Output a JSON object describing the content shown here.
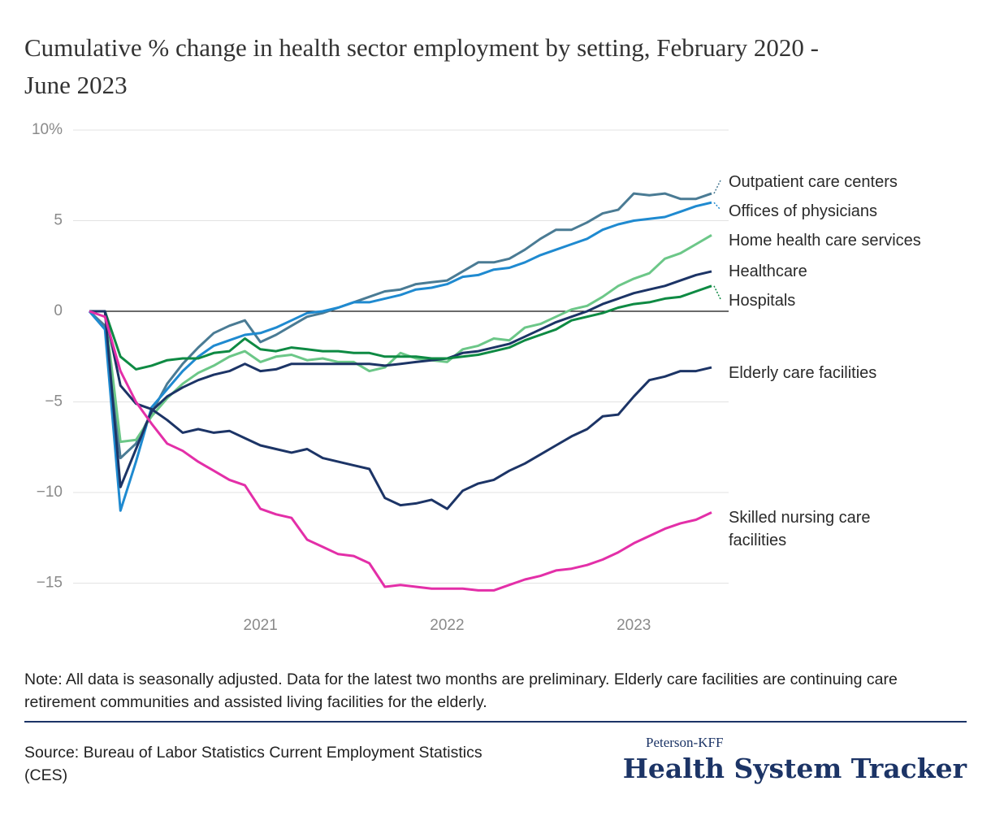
{
  "chart_data": {
    "type": "line",
    "title": "Cumulative % change in health sector employment by setting, February 2020 - June 2023",
    "categories": [
      null,
      null,
      null,
      null,
      null,
      null,
      null,
      null,
      null,
      null,
      null,
      "2021",
      null,
      null,
      null,
      null,
      null,
      null,
      null,
      null,
      null,
      null,
      null,
      "2022",
      null,
      null,
      null,
      null,
      null,
      null,
      null,
      null,
      null,
      null,
      null,
      "2023",
      null,
      null,
      null,
      null,
      null
    ],
    "ylim": [
      -16,
      10
    ],
    "yticks": [
      {
        "value": 10,
        "label": "10%"
      },
      5,
      0,
      {
        "value": -5,
        "label": "−5"
      },
      {
        "value": -10,
        "label": "−10"
      },
      {
        "value": -15,
        "label": "−15"
      }
    ],
    "grid": true,
    "series": [
      {
        "name": "Outpatient care centers",
        "color": "#4a7b94",
        "values": [
          0,
          -0.8,
          -8.1,
          -7.3,
          -5.6,
          -4.0,
          -2.9,
          -2.0,
          -1.2,
          -0.8,
          -0.5,
          -1.7,
          -1.3,
          -0.8,
          -0.3,
          -0.1,
          0.2,
          0.5,
          0.8,
          1.1,
          1.2,
          1.5,
          1.6,
          1.7,
          2.2,
          2.7,
          2.7,
          2.9,
          3.4,
          4.0,
          4.5,
          4.5,
          4.9,
          5.4,
          5.6,
          6.5,
          6.4,
          6.5,
          6.2,
          6.2,
          6.5
        ]
      },
      {
        "name": "Offices of physicians",
        "color": "#1f8ad0",
        "values": [
          0,
          -1.0,
          -11.0,
          -8.3,
          -5.3,
          -4.3,
          -3.3,
          -2.5,
          -1.9,
          -1.6,
          -1.3,
          -1.2,
          -0.9,
          -0.5,
          -0.1,
          0.0,
          0.2,
          0.5,
          0.5,
          0.7,
          0.9,
          1.2,
          1.3,
          1.5,
          1.9,
          2.0,
          2.3,
          2.4,
          2.7,
          3.1,
          3.4,
          3.7,
          4.0,
          4.5,
          4.8,
          5.0,
          5.1,
          5.2,
          5.5,
          5.8,
          6.0
        ]
      },
      {
        "name": "Home health care services",
        "color": "#6cc788",
        "values": [
          0,
          0,
          -7.2,
          -7.1,
          -5.8,
          -4.8,
          -4.0,
          -3.4,
          -3.0,
          -2.5,
          -2.2,
          -2.8,
          -2.5,
          -2.4,
          -2.7,
          -2.6,
          -2.8,
          -2.8,
          -3.3,
          -3.1,
          -2.3,
          -2.6,
          -2.7,
          -2.8,
          -2.1,
          -1.9,
          -1.5,
          -1.6,
          -0.9,
          -0.7,
          -0.3,
          0.1,
          0.3,
          0.8,
          1.4,
          1.8,
          2.1,
          2.9,
          3.2,
          3.7,
          4.2
        ]
      },
      {
        "name": "Healthcare",
        "color": "#1c3466",
        "values": [
          0,
          0,
          -9.7,
          -7.6,
          -5.5,
          -4.7,
          -4.2,
          -3.8,
          -3.5,
          -3.3,
          -2.9,
          -3.3,
          -3.2,
          -2.9,
          -2.9,
          -2.9,
          -2.9,
          -2.9,
          -2.9,
          -3.0,
          -2.9,
          -2.8,
          -2.7,
          -2.6,
          -2.3,
          -2.2,
          -2.0,
          -1.8,
          -1.4,
          -1.0,
          -0.6,
          -0.3,
          0.0,
          0.4,
          0.7,
          1.0,
          1.2,
          1.4,
          1.7,
          2.0,
          2.2
        ]
      },
      {
        "name": "Hospitals",
        "color": "#0e8a43",
        "values": [
          0,
          0,
          -2.5,
          -3.2,
          -3.0,
          -2.7,
          -2.6,
          -2.6,
          -2.3,
          -2.2,
          -1.5,
          -2.1,
          -2.2,
          -2.0,
          -2.1,
          -2.2,
          -2.2,
          -2.3,
          -2.3,
          -2.5,
          -2.5,
          -2.5,
          -2.6,
          -2.6,
          -2.5,
          -2.4,
          -2.2,
          -2.0,
          -1.6,
          -1.3,
          -1.0,
          -0.5,
          -0.3,
          -0.1,
          0.2,
          0.4,
          0.5,
          0.7,
          0.8,
          1.1,
          1.4
        ]
      },
      {
        "name": "Elderly care facilities",
        "color": "#1c3466",
        "values": [
          0,
          0,
          -4.1,
          -5.1,
          -5.4,
          -6.0,
          -6.7,
          -6.5,
          -6.7,
          -6.6,
          -7.0,
          -7.4,
          -7.6,
          -7.8,
          -7.6,
          -8.1,
          -8.3,
          -8.5,
          -8.7,
          -10.3,
          -10.7,
          -10.6,
          -10.4,
          -10.9,
          -9.9,
          -9.5,
          -9.3,
          -8.8,
          -8.4,
          -7.9,
          -7.4,
          -6.9,
          -6.5,
          -5.8,
          -5.7,
          -4.7,
          -3.8,
          -3.6,
          -3.3,
          -3.3,
          -3.1
        ]
      },
      {
        "name": "Skilled nursing care facilities",
        "color": "#e32fa8",
        "values": [
          0,
          -0.3,
          -3.3,
          -5.0,
          -6.2,
          -7.3,
          -7.7,
          -8.3,
          -8.8,
          -9.3,
          -9.6,
          -10.9,
          -11.2,
          -11.4,
          -12.6,
          -13.0,
          -13.4,
          -13.5,
          -13.9,
          -15.2,
          -15.1,
          -15.2,
          -15.3,
          -15.3,
          -15.3,
          -15.4,
          -15.4,
          -15.1,
          -14.8,
          -14.6,
          -14.3,
          -14.2,
          -14.0,
          -13.7,
          -13.3,
          -12.8,
          -12.4,
          -12.0,
          -11.7,
          -11.5,
          -11.1
        ]
      }
    ],
    "note": "Note: All data is seasonally adjusted. Data for the latest two months are preliminary. Elderly care facilities are continuing care retirement communities and assisted living facilities for the elderly.",
    "source": "Source: Bureau of Labor Statistics Current Employment Statistics (CES)"
  },
  "brand": {
    "top": "Peterson-KFF",
    "name": "Health System Tracker"
  }
}
